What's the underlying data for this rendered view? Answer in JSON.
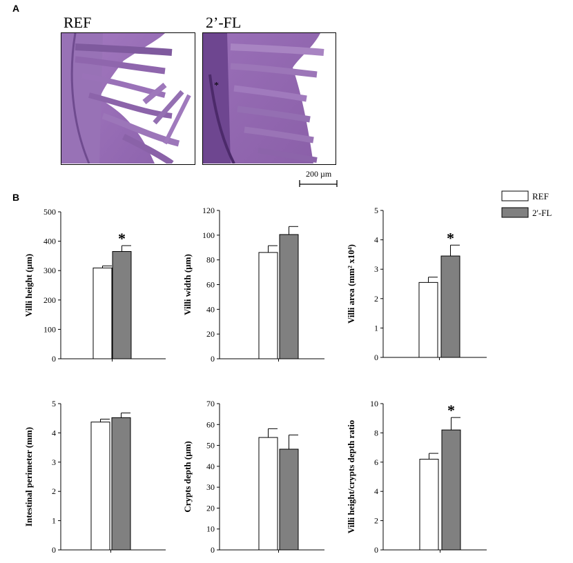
{
  "panel_a": {
    "label": "A",
    "images": [
      {
        "title": "REF"
      },
      {
        "title": "2’-FL"
      }
    ],
    "scale_bar_label": "200 µm"
  },
  "panel_b": {
    "label": "B",
    "legend": [
      {
        "name": "REF",
        "color": "#ffffff"
      },
      {
        "name": "2'-FL",
        "color": "#808080"
      }
    ]
  },
  "chart_data": [
    {
      "type": "bar",
      "ylabel": "Villi height (µm)",
      "ylim": [
        0,
        500
      ],
      "yticks": [
        0,
        100,
        200,
        300,
        400,
        500
      ],
      "categories": [
        "REF",
        "2'-FL"
      ],
      "values": [
        309,
        365
      ],
      "errors": [
        7,
        20
      ],
      "significance": [
        false,
        true
      ]
    },
    {
      "type": "bar",
      "ylabel": "Villi width (µm)",
      "ylim": [
        0,
        120
      ],
      "yticks": [
        0,
        20,
        40,
        60,
        80,
        100,
        120
      ],
      "categories": [
        "REF",
        "2'-FL"
      ],
      "values": [
        86,
        100.5
      ],
      "errors": [
        5.5,
        6.5
      ],
      "significance": [
        false,
        false
      ]
    },
    {
      "type": "bar",
      "ylabel": "Villi area (mm² x10⁴)",
      "ylim": [
        0,
        5
      ],
      "yticks": [
        0,
        1,
        2,
        3,
        4,
        5
      ],
      "categories": [
        "REF",
        "2'-FL"
      ],
      "values": [
        2.55,
        3.45
      ],
      "errors": [
        0.18,
        0.37
      ],
      "significance": [
        false,
        true
      ]
    },
    {
      "type": "bar",
      "ylabel": "Intestinal perimeter (mm)",
      "ylim": [
        0,
        5
      ],
      "yticks": [
        0,
        1,
        2,
        3,
        4,
        5
      ],
      "categories": [
        "REF",
        "2'-FL"
      ],
      "values": [
        4.37,
        4.52
      ],
      "errors": [
        0.1,
        0.16
      ],
      "significance": [
        false,
        false
      ]
    },
    {
      "type": "bar",
      "ylabel": "Crypts depth (µm)",
      "ylim": [
        0,
        70
      ],
      "yticks": [
        0,
        10,
        20,
        30,
        40,
        50,
        60,
        70
      ],
      "categories": [
        "REF",
        "2'-FL"
      ],
      "values": [
        53.8,
        48.2
      ],
      "errors": [
        4.2,
        6.8
      ],
      "significance": [
        false,
        false
      ]
    },
    {
      "type": "bar",
      "ylabel": "Villi height/crypts depth ratio",
      "ylim": [
        0,
        10
      ],
      "yticks": [
        0,
        2,
        4,
        6,
        8,
        10
      ],
      "categories": [
        "REF",
        "2'-FL"
      ],
      "values": [
        6.2,
        8.2
      ],
      "errors": [
        0.4,
        0.85
      ],
      "significance": [
        false,
        true
      ]
    }
  ]
}
